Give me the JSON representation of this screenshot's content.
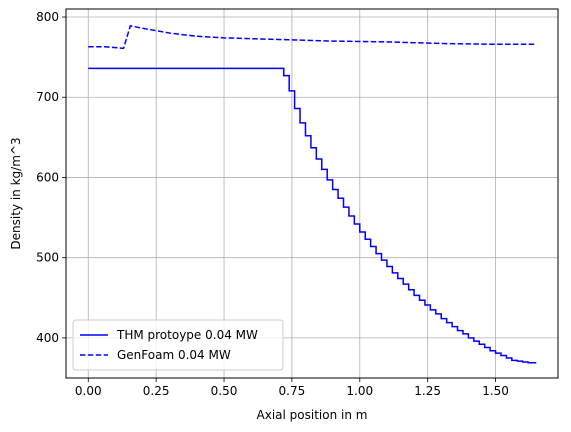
{
  "chart_data": {
    "type": "line",
    "title": "",
    "xlabel": "Axial position in m",
    "ylabel": "Density in kg/m^3",
    "xlim": [
      -0.082,
      1.73
    ],
    "ylim": [
      350,
      810
    ],
    "xticks": [
      0.0,
      0.25,
      0.5,
      0.75,
      1.0,
      1.25,
      1.5
    ],
    "xtick_labels": [
      "0.00",
      "0.25",
      "0.50",
      "0.75",
      "1.00",
      "1.25",
      "1.50"
    ],
    "yticks": [
      400,
      500,
      600,
      700,
      800
    ],
    "ytick_labels": [
      "400",
      "500",
      "600",
      "700",
      "800"
    ],
    "grid": true,
    "legend_position": "lower-left",
    "series": [
      {
        "name": "THM protoype 0.04 MW",
        "style": "solid-step",
        "color": "#0000ff",
        "x": [
          0.0,
          0.7,
          0.72,
          0.74,
          0.76,
          0.78,
          0.8,
          0.82,
          0.84,
          0.86,
          0.88,
          0.9,
          0.92,
          0.94,
          0.96,
          0.98,
          1.0,
          1.02,
          1.04,
          1.06,
          1.08,
          1.1,
          1.12,
          1.14,
          1.16,
          1.18,
          1.2,
          1.22,
          1.24,
          1.26,
          1.28,
          1.3,
          1.32,
          1.34,
          1.36,
          1.38,
          1.4,
          1.42,
          1.44,
          1.46,
          1.48,
          1.5,
          1.52,
          1.54,
          1.56,
          1.58,
          1.6,
          1.62,
          1.65
        ],
        "y": [
          736,
          736,
          727,
          708,
          686,
          668,
          652,
          637,
          623,
          610,
          597,
          585,
          574,
          563,
          552,
          542,
          532,
          523,
          514,
          505,
          497,
          489,
          481,
          474,
          467,
          460,
          453,
          447,
          441,
          435,
          430,
          424,
          419,
          414,
          409,
          405,
          400,
          396,
          392,
          388,
          384,
          381,
          378,
          375,
          372,
          371,
          370,
          369,
          369
        ]
      },
      {
        "name": "GenFoam 0.04 MW",
        "style": "dashed",
        "color": "#0000ff",
        "x": [
          0.0,
          0.06,
          0.13,
          0.155,
          0.2,
          0.3,
          0.4,
          0.5,
          0.7,
          0.9,
          1.1,
          1.3,
          1.5,
          1.65
        ],
        "y": [
          763,
          763,
          761,
          789,
          786,
          780,
          776,
          774,
          772,
          770,
          769,
          767,
          766,
          766
        ]
      }
    ]
  }
}
